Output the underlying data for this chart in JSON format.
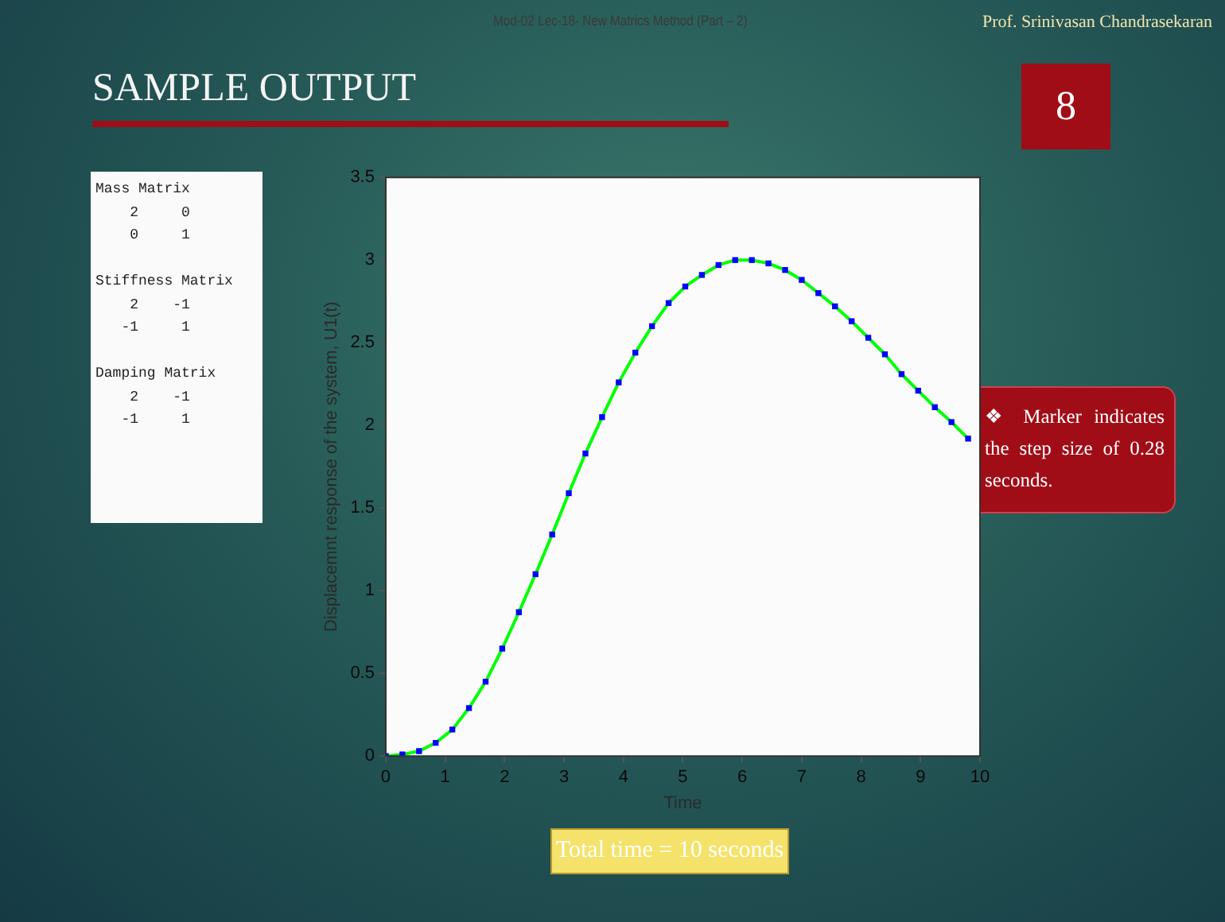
{
  "chart_data": {
    "type": "line",
    "title": "SAMPLE OUTPUT",
    "xlabel": "Time",
    "ylabel": "Displacemnt response of the system, U1(t)",
    "x": [
      0,
      0.28,
      0.56,
      0.84,
      1.12,
      1.4,
      1.68,
      1.96,
      2.24,
      2.52,
      2.8,
      3.08,
      3.36,
      3.64,
      3.92,
      4.2,
      4.48,
      4.76,
      5.04,
      5.32,
      5.6,
      5.88,
      6.16,
      6.44,
      6.72,
      7.0,
      7.28,
      7.56,
      7.84,
      8.12,
      8.4,
      8.68,
      8.96,
      9.24,
      9.52,
      9.8
    ],
    "series": [
      {
        "color": "#00ff00",
        "marker": "none",
        "values": [
          0,
          0.01,
          0.03,
          0.08,
          0.16,
          0.29,
          0.45,
          0.65,
          0.87,
          1.1,
          1.34,
          1.59,
          1.83,
          2.05,
          2.26,
          2.44,
          2.6,
          2.74,
          2.84,
          2.91,
          2.97,
          3.0,
          3.0,
          2.98,
          2.94,
          2.88,
          2.8,
          2.72,
          2.63,
          2.53,
          2.43,
          2.31,
          2.21,
          2.11,
          2.02,
          1.92
        ]
      },
      {
        "type": "scatter",
        "color": "#0000ff",
        "marker": "square",
        "values": [
          0,
          0.01,
          0.03,
          0.08,
          0.16,
          0.29,
          0.45,
          0.65,
          0.87,
          1.1,
          1.34,
          1.59,
          1.83,
          2.05,
          2.26,
          2.44,
          2.6,
          2.74,
          2.84,
          2.91,
          2.97,
          3.0,
          3.0,
          2.98,
          2.94,
          2.88,
          2.8,
          2.72,
          2.63,
          2.53,
          2.43,
          2.31,
          2.21,
          2.11,
          2.02,
          1.92
        ]
      }
    ],
    "xlim": [
      0,
      10
    ],
    "xticks": [
      0,
      1,
      2,
      3,
      4,
      5,
      6,
      7,
      8,
      9,
      10
    ],
    "ylim": [
      0,
      3.5
    ],
    "yticks": [
      0,
      0.5,
      1,
      1.5,
      2,
      2.5,
      3,
      3.5
    ],
    "grid": false,
    "legend": false,
    "annotations": [
      "Mod-02 Lec-18- New Matrics Method (Part – 2)",
      "Prof. Srinivasan Chandrasekaran",
      "8",
      "Mass Matrix\n    2     0\n    0     1\n\nStiffness Matrix\n    2    -1\n   -1     1\n\nDamping Matrix\n    2    -1\n   -1     1",
      "❖  Marker indicates the step size of 0.28 seconds.",
      "Total time = 10 seconds"
    ]
  }
}
